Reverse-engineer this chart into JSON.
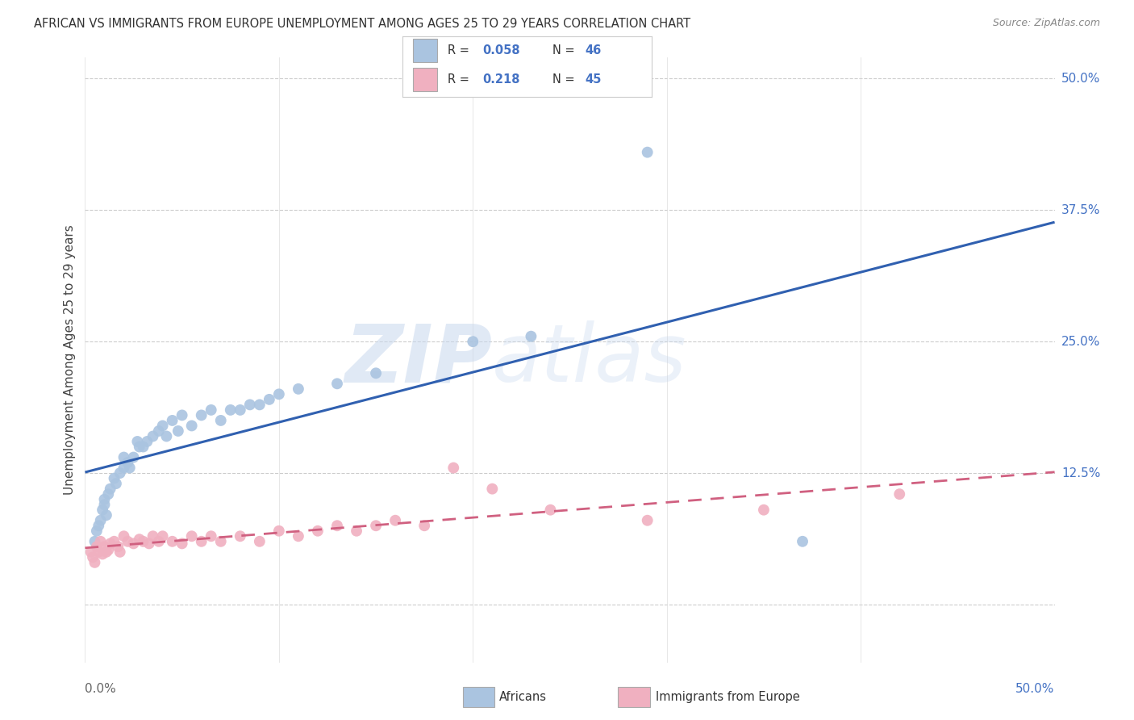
{
  "title": "AFRICAN VS IMMIGRANTS FROM EUROPE UNEMPLOYMENT AMONG AGES 25 TO 29 YEARS CORRELATION CHART",
  "source": "Source: ZipAtlas.com",
  "ylabel": "Unemployment Among Ages 25 to 29 years",
  "african_color": "#aac4e0",
  "african_line_color": "#3060b0",
  "europe_color": "#f0b0c0",
  "europe_line_color": "#d06080",
  "legend_african_label": "Africans",
  "legend_europe_label": "Immigrants from Europe",
  "R_african": "0.058",
  "N_african": "46",
  "R_europe": "0.218",
  "N_europe": "45",
  "watermark_zip": "ZIP",
  "watermark_atlas": "atlas",
  "xlim": [
    0.0,
    0.5
  ],
  "ylim": [
    -0.055,
    0.52
  ],
  "ytick_vals": [
    0.0,
    0.125,
    0.25,
    0.375,
    0.5
  ],
  "ytick_labels_right": [
    "",
    "12.5%",
    "25.0%",
    "37.5%",
    "50.0%"
  ],
  "xtick_vals": [
    0.0,
    0.1,
    0.2,
    0.3,
    0.4,
    0.5
  ],
  "africans_x": [
    0.005,
    0.006,
    0.007,
    0.008,
    0.009,
    0.01,
    0.01,
    0.011,
    0.012,
    0.013,
    0.015,
    0.016,
    0.018,
    0.02,
    0.02,
    0.022,
    0.023,
    0.025,
    0.027,
    0.028,
    0.03,
    0.032,
    0.035,
    0.038,
    0.04,
    0.042,
    0.045,
    0.048,
    0.05,
    0.055,
    0.06,
    0.065,
    0.07,
    0.075,
    0.08,
    0.085,
    0.09,
    0.095,
    0.1,
    0.11,
    0.13,
    0.15,
    0.2,
    0.23,
    0.29,
    0.37
  ],
  "africans_y": [
    0.06,
    0.07,
    0.075,
    0.08,
    0.09,
    0.095,
    0.1,
    0.085,
    0.105,
    0.11,
    0.12,
    0.115,
    0.125,
    0.13,
    0.14,
    0.135,
    0.13,
    0.14,
    0.155,
    0.15,
    0.15,
    0.155,
    0.16,
    0.165,
    0.17,
    0.16,
    0.175,
    0.165,
    0.18,
    0.17,
    0.18,
    0.185,
    0.175,
    0.185,
    0.185,
    0.19,
    0.19,
    0.195,
    0.2,
    0.205,
    0.21,
    0.22,
    0.25,
    0.255,
    0.43,
    0.06
  ],
  "europe_x": [
    0.003,
    0.004,
    0.005,
    0.006,
    0.007,
    0.008,
    0.009,
    0.01,
    0.011,
    0.012,
    0.013,
    0.015,
    0.017,
    0.018,
    0.02,
    0.022,
    0.025,
    0.028,
    0.03,
    0.033,
    0.035,
    0.038,
    0.04,
    0.045,
    0.05,
    0.055,
    0.06,
    0.065,
    0.07,
    0.08,
    0.09,
    0.1,
    0.11,
    0.12,
    0.13,
    0.14,
    0.15,
    0.16,
    0.175,
    0.19,
    0.21,
    0.24,
    0.29,
    0.35,
    0.42
  ],
  "europe_y": [
    0.05,
    0.045,
    0.04,
    0.055,
    0.05,
    0.06,
    0.048,
    0.055,
    0.05,
    0.052,
    0.058,
    0.06,
    0.055,
    0.05,
    0.065,
    0.06,
    0.058,
    0.062,
    0.06,
    0.058,
    0.065,
    0.06,
    0.065,
    0.06,
    0.058,
    0.065,
    0.06,
    0.065,
    0.06,
    0.065,
    0.06,
    0.07,
    0.065,
    0.07,
    0.075,
    0.07,
    0.075,
    0.08,
    0.075,
    0.13,
    0.11,
    0.09,
    0.08,
    0.09,
    0.105
  ]
}
